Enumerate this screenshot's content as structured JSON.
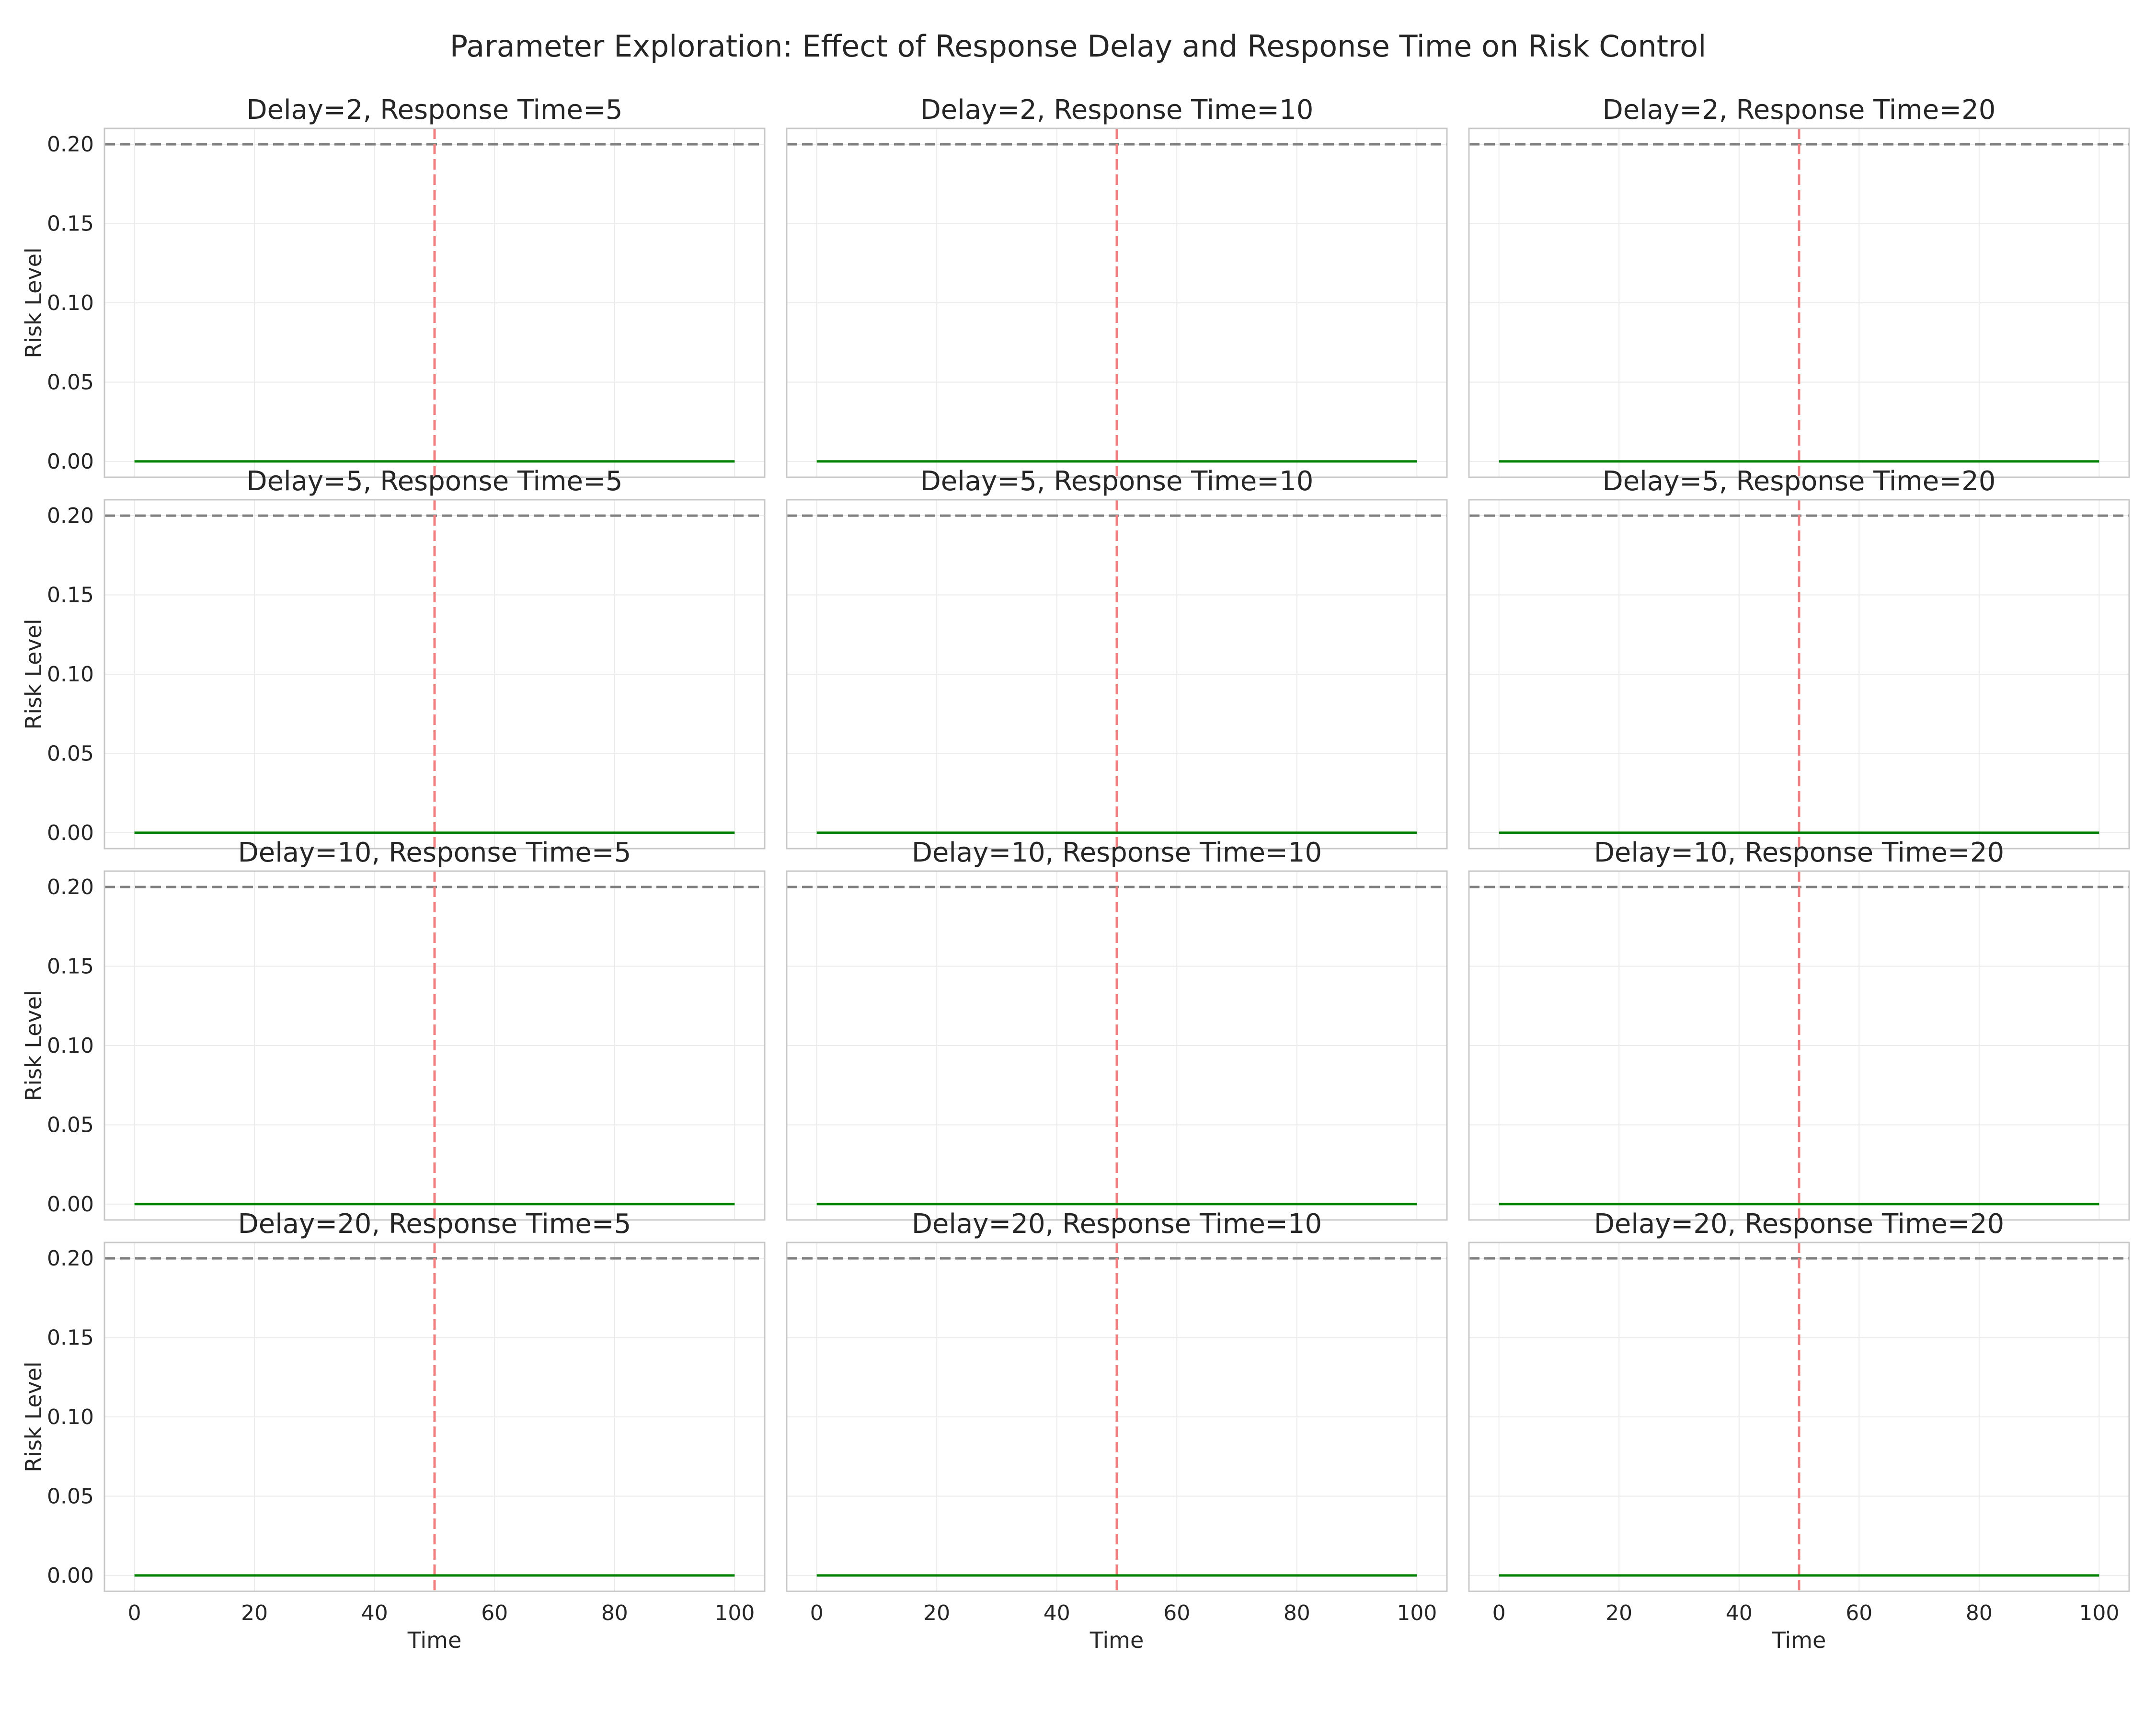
{
  "figure": {
    "title": "Parameter Exploration: Effect of Response Delay and Response Time on Risk Control"
  },
  "style": {
    "risk_color": "#008000",
    "threshold_color": "#808080",
    "event_color": "#f08080",
    "grid_color": "#ebebeb",
    "frame_color": "#c8c8c8"
  },
  "chart_data": {
    "type": "line",
    "layout": "small-multiples 4x3, shared x and y axes",
    "xlabel": "Time",
    "ylabel": "Risk Level",
    "xlim": [
      -5,
      105
    ],
    "ylim": [
      -0.01,
      0.21
    ],
    "xticks": [
      0,
      20,
      40,
      60,
      80,
      100
    ],
    "yticks": [
      0.0,
      0.05,
      0.1,
      0.15,
      0.2
    ],
    "xtick_labels": [
      "0",
      "20",
      "40",
      "60",
      "80",
      "100"
    ],
    "ytick_labels": [
      "0.00",
      "0.05",
      "0.10",
      "0.15",
      "0.20"
    ],
    "grid": true,
    "threshold": 0.2,
    "event_time": 50,
    "panels": [
      {
        "title": "Delay=2, Response Time=5",
        "risk": {
          "x": [
            0,
            100
          ],
          "y": [
            0,
            0
          ]
        }
      },
      {
        "title": "Delay=2, Response Time=10",
        "risk": {
          "x": [
            0,
            100
          ],
          "y": [
            0,
            0
          ]
        }
      },
      {
        "title": "Delay=2, Response Time=20",
        "risk": {
          "x": [
            0,
            100
          ],
          "y": [
            0,
            0
          ]
        }
      },
      {
        "title": "Delay=5, Response Time=5",
        "risk": {
          "x": [
            0,
            100
          ],
          "y": [
            0,
            0
          ]
        }
      },
      {
        "title": "Delay=5, Response Time=10",
        "risk": {
          "x": [
            0,
            100
          ],
          "y": [
            0,
            0
          ]
        }
      },
      {
        "title": "Delay=5, Response Time=20",
        "risk": {
          "x": [
            0,
            100
          ],
          "y": [
            0,
            0
          ]
        }
      },
      {
        "title": "Delay=10, Response Time=5",
        "risk": {
          "x": [
            0,
            100
          ],
          "y": [
            0,
            0
          ]
        }
      },
      {
        "title": "Delay=10, Response Time=10",
        "risk": {
          "x": [
            0,
            100
          ],
          "y": [
            0,
            0
          ]
        }
      },
      {
        "title": "Delay=10, Response Time=20",
        "risk": {
          "x": [
            0,
            100
          ],
          "y": [
            0,
            0
          ]
        }
      },
      {
        "title": "Delay=20, Response Time=5",
        "risk": {
          "x": [
            0,
            100
          ],
          "y": [
            0,
            0
          ]
        }
      },
      {
        "title": "Delay=20, Response Time=10",
        "risk": {
          "x": [
            0,
            100
          ],
          "y": [
            0,
            0
          ]
        }
      },
      {
        "title": "Delay=20, Response Time=20",
        "risk": {
          "x": [
            0,
            100
          ],
          "y": [
            0,
            0
          ]
        }
      }
    ]
  }
}
